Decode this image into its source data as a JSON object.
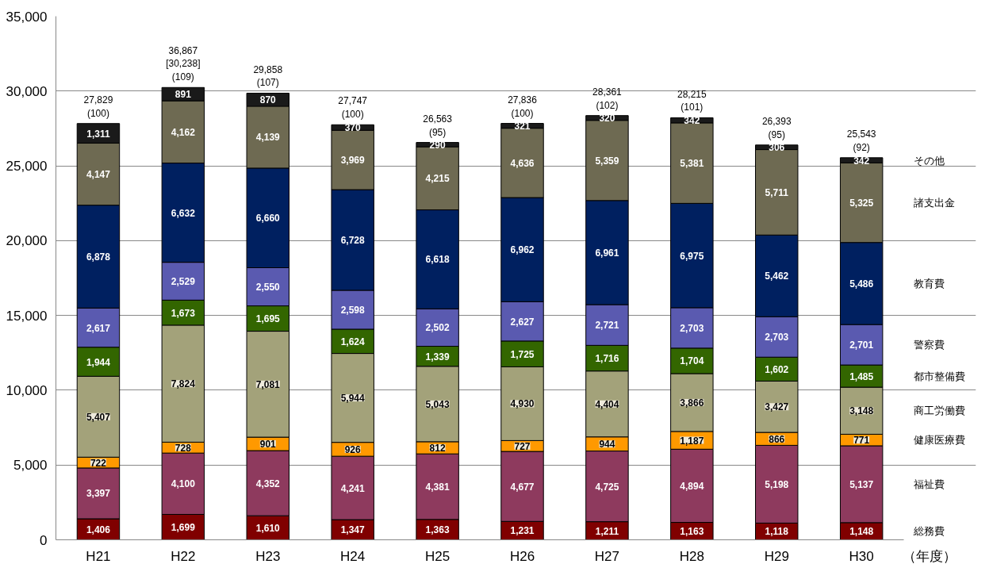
{
  "chart_data": {
    "type": "bar",
    "stacked": true,
    "xlabel": "（年度）",
    "categories": [
      "H21",
      "H22",
      "H23",
      "H24",
      "H25",
      "H26",
      "H27",
      "H28",
      "H29",
      "H30"
    ],
    "series": [
      {
        "name": "総務費",
        "color": "#800000",
        "values": [
          1406,
          1699,
          1610,
          1347,
          1363,
          1231,
          1211,
          1163,
          1118,
          1148
        ],
        "value_labels": [
          "1,406",
          "1,699",
          "1,610",
          "1,347",
          "1,363",
          "1,231",
          "1,211",
          "1,163",
          "1,118",
          "1,148"
        ]
      },
      {
        "name": "福祉費",
        "color": "#8e3a5e",
        "values": [
          3397,
          4100,
          4352,
          4241,
          4381,
          4677,
          4725,
          4894,
          5198,
          5137
        ],
        "value_labels": [
          "3,397",
          "4,100",
          "4,352",
          "4,241",
          "4,381",
          "4,677",
          "4,725",
          "4,894",
          "5,198",
          "5,137"
        ]
      },
      {
        "name": "健康医療費",
        "color": "#ff9900",
        "values": [
          722,
          728,
          901,
          926,
          812,
          727,
          944,
          1187,
          866,
          771
        ],
        "value_labels": [
          "722",
          "728",
          "901",
          "926",
          "812",
          "727",
          "944",
          "1,187",
          "866",
          "771"
        ]
      },
      {
        "name": "商工労働費",
        "color": "#a3a27a",
        "values": [
          5407,
          7824,
          7081,
          5944,
          5043,
          4930,
          4404,
          3866,
          3427,
          3148
        ],
        "value_labels": [
          "5,407",
          "7,824",
          "7,081",
          "5,944",
          "5,043",
          "4,930",
          "4,404",
          "3,866",
          "3,427",
          "3,148"
        ]
      },
      {
        "name": "都市整備費",
        "color": "#336600",
        "values": [
          1944,
          1673,
          1695,
          1624,
          1339,
          1725,
          1716,
          1704,
          1602,
          1485
        ],
        "value_labels": [
          "1,944",
          "1,673",
          "1,695",
          "1,624",
          "1,339",
          "1,725",
          "1,716",
          "1,704",
          "1,602",
          "1,485"
        ]
      },
      {
        "name": "警察費",
        "color": "#5a5ab0",
        "values": [
          2617,
          2529,
          2550,
          2598,
          2502,
          2627,
          2721,
          2703,
          2703,
          2701
        ],
        "value_labels": [
          "2,617",
          "2,529",
          "2,550",
          "2,598",
          "2,502",
          "2,627",
          "2,721",
          "2,703",
          "2,703",
          "2,701"
        ]
      },
      {
        "name": "教育費",
        "color": "#002060",
        "values": [
          6878,
          6632,
          6660,
          6728,
          6618,
          6962,
          6961,
          6975,
          5462,
          5486
        ],
        "value_labels": [
          "6,878",
          "6,632",
          "6,660",
          "6,728",
          "6,618",
          "6,962",
          "6,961",
          "6,975",
          "5,462",
          "5,486"
        ]
      },
      {
        "name": "諸支出金",
        "color": "#6e6a52",
        "values": [
          4147,
          4162,
          4139,
          3969,
          4215,
          4636,
          5359,
          5381,
          5711,
          5325
        ],
        "value_labels": [
          "4,147",
          "4,162",
          "4,139",
          "3,969",
          "4,215",
          "4,636",
          "5,359",
          "5,381",
          "5,711",
          "5,325"
        ]
      },
      {
        "name": "その他",
        "color": "#1a1a1a",
        "values": [
          1311,
          891,
          870,
          370,
          290,
          321,
          320,
          342,
          306,
          342
        ],
        "value_labels": [
          "1,311",
          "891",
          "870",
          "370",
          "290",
          "321",
          "320",
          "342",
          "306",
          "342"
        ]
      }
    ],
    "totals": [
      "27,829\n(100)",
      "36,867\n[30,238]\n(109)",
      "29,858\n(107)",
      "27,747\n(100)",
      "26,563\n(95)",
      "27,836\n(100)",
      "28,361\n(102)",
      "28,215\n(101)",
      "26,393\n(95)",
      "25,543\n(92)"
    ],
    "ylim": [
      0,
      35000
    ],
    "yticks": [
      {
        "value": 0,
        "label": "0"
      },
      {
        "value": 5000,
        "label": "5,000"
      },
      {
        "value": 10000,
        "label": "10,000"
      },
      {
        "value": 15000,
        "label": "15,000"
      },
      {
        "value": 20000,
        "label": "20,000"
      },
      {
        "value": 25000,
        "label": "25,000"
      },
      {
        "value": 30000,
        "label": "30,000"
      },
      {
        "value": 35000,
        "label": "35,000"
      }
    ],
    "grid": "y"
  }
}
